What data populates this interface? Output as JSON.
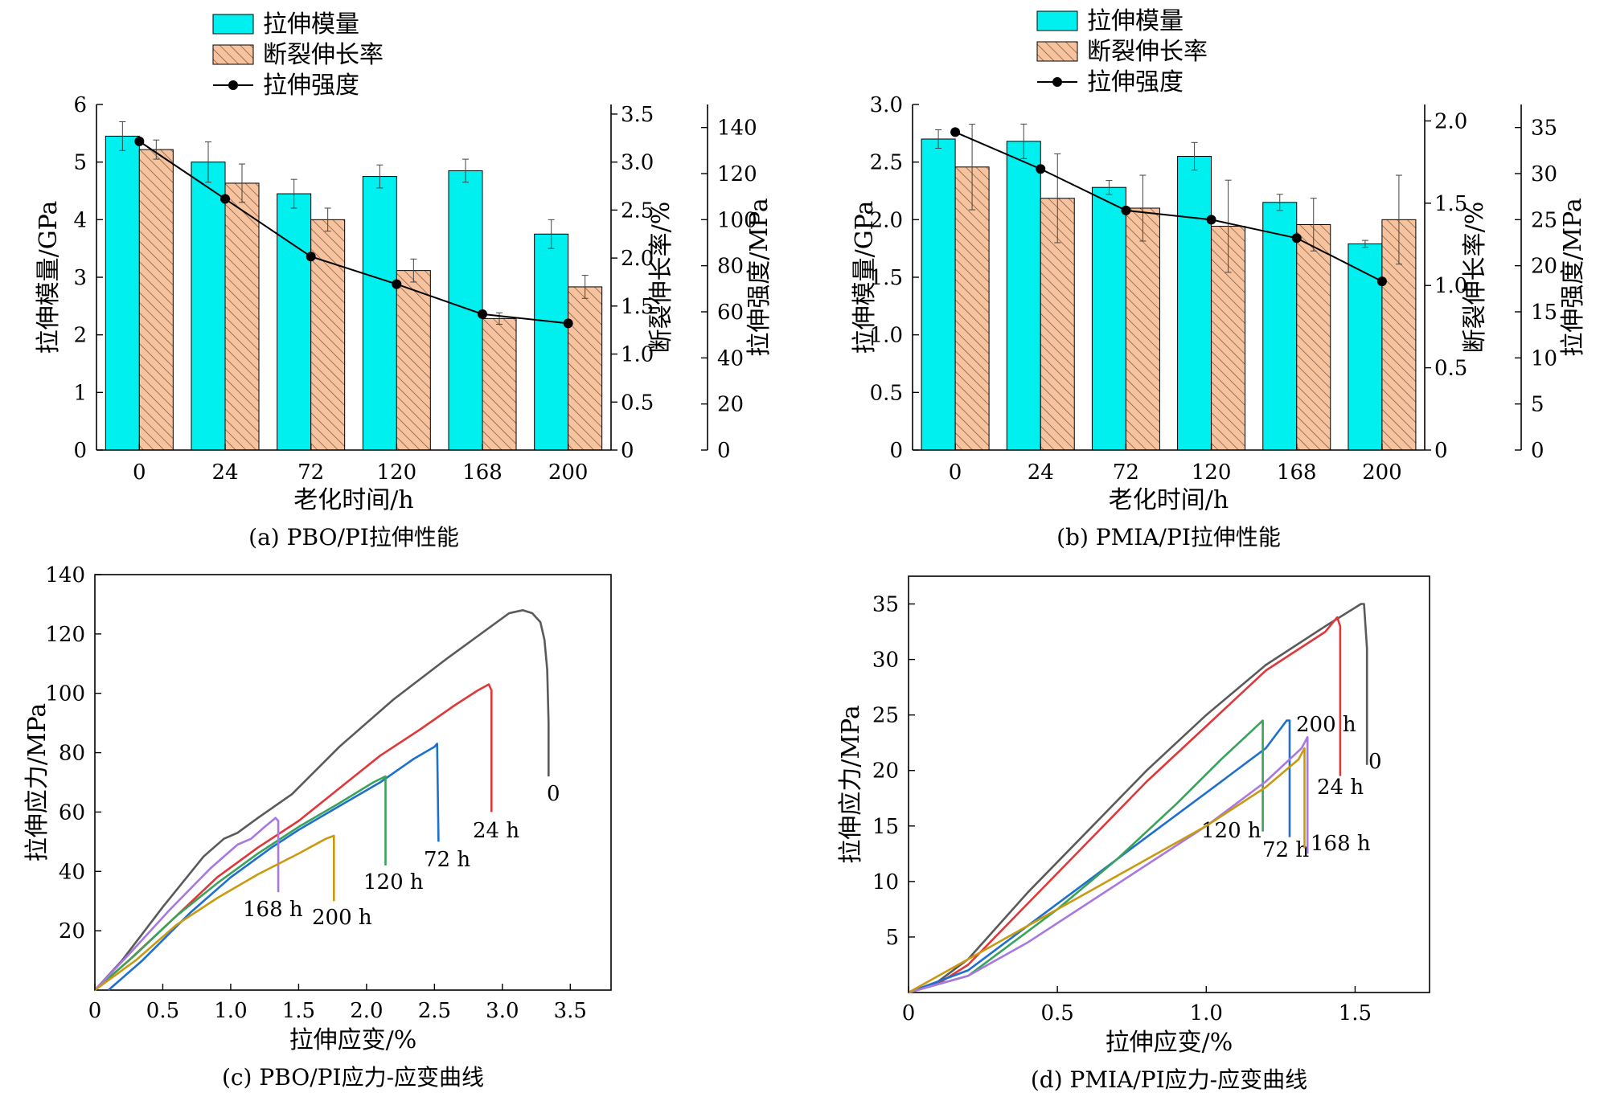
{
  "colors": {
    "modulus_fill": "#00f0f0",
    "elongation_fill": "#f6c39e",
    "hatch": "#6b4a33",
    "strength_line": "#000000",
    "curve_0": "#5a5a5a",
    "curve_24": "#e0383a",
    "curve_72": "#1f6fd0",
    "curve_120": "#3aa35a",
    "curve_168": "#a878e0",
    "curve_200": "#c99a10"
  },
  "chart_data": [
    {
      "type": "bar",
      "caption": "(a) PBO/PI拉伸性能",
      "categories": [
        "0",
        "24",
        "72",
        "120",
        "168",
        "200"
      ],
      "xlabel": "老化时间/h",
      "legend": [
        "拉伸模量",
        "断裂伸长率",
        "拉伸强度"
      ],
      "axes": [
        {
          "label": "拉伸模量/GPa",
          "ylim": [
            0,
            6
          ],
          "ticks": [
            "0",
            "1",
            "2",
            "3",
            "4",
            "5",
            "6"
          ]
        },
        {
          "label": "断裂伸长率/%",
          "ylim": [
            0,
            3.6
          ],
          "ticks": [
            "0",
            "0.5",
            "1.0",
            "1.5",
            "2.0",
            "2.5",
            "3.0",
            "3.5"
          ]
        },
        {
          "label": "拉伸强度/MPa",
          "ylim": [
            0,
            150
          ],
          "ticks": [
            "0",
            "20",
            "40",
            "60",
            "80",
            "100",
            "120",
            "140"
          ]
        }
      ],
      "series": [
        {
          "name": "拉伸模量",
          "axis": 0,
          "values": [
            5.45,
            5.0,
            4.45,
            4.75,
            4.85,
            3.75
          ],
          "errors": [
            0.25,
            0.35,
            0.25,
            0.2,
            0.2,
            0.25
          ]
        },
        {
          "name": "断裂伸长率",
          "axis": 1,
          "values": [
            3.13,
            2.78,
            2.4,
            1.87,
            1.37,
            1.7
          ],
          "errors": [
            0.1,
            0.2,
            0.12,
            0.12,
            0.06,
            0.12
          ]
        },
        {
          "name": "拉伸强度",
          "axis": 2,
          "values": [
            134,
            109,
            84,
            72,
            59,
            55
          ]
        }
      ]
    },
    {
      "type": "bar",
      "caption": "(b) PMIA/PI拉伸性能",
      "categories": [
        "0",
        "24",
        "72",
        "120",
        "168",
        "200"
      ],
      "xlabel": "老化时间/h",
      "legend": [
        "拉伸模量",
        "断裂伸长率",
        "拉伸强度"
      ],
      "axes": [
        {
          "label": "拉伸模量/GPa",
          "ylim": [
            0,
            3.0
          ],
          "ticks": [
            "0",
            "0.5",
            "1.0",
            "1.5",
            "2.0",
            "2.5",
            "3.0"
          ]
        },
        {
          "label": "断裂伸长率/%",
          "ylim": [
            0,
            2.1
          ],
          "ticks": [
            "0",
            "0.5",
            "1.0",
            "1.5",
            "2.0"
          ]
        },
        {
          "label": "拉伸强度/MPa",
          "ylim": [
            0,
            37.5
          ],
          "ticks": [
            "0",
            "5",
            "10",
            "15",
            "20",
            "25",
            "30",
            "35"
          ]
        }
      ],
      "series": [
        {
          "name": "拉伸模量",
          "axis": 0,
          "values": [
            2.7,
            2.68,
            2.28,
            2.55,
            2.15,
            1.79
          ],
          "errors": [
            0.08,
            0.15,
            0.06,
            0.12,
            0.07,
            0.03
          ]
        },
        {
          "name": "断裂伸长率",
          "axis": 1,
          "values": [
            1.72,
            1.53,
            1.47,
            1.36,
            1.37,
            1.4
          ],
          "errors": [
            0.26,
            0.27,
            0.2,
            0.28,
            0.16,
            0.27
          ]
        },
        {
          "name": "拉伸强度",
          "axis": 2,
          "values": [
            34.5,
            30.5,
            26.0,
            25.0,
            23.0,
            18.3
          ]
        }
      ]
    },
    {
      "type": "line",
      "caption": "(c) PBO/PI应力-应变曲线",
      "xlabel": "拉伸应变/%",
      "ylabel": "拉伸应力/MPa",
      "xlim": [
        0,
        3.8
      ],
      "ylim": [
        0,
        140
      ],
      "xticks": [
        "0",
        "0.5",
        "1.0",
        "1.5",
        "2.0",
        "2.5",
        "3.0",
        "3.5"
      ],
      "yticks": [
        "20",
        "40",
        "60",
        "80",
        "100",
        "120",
        "140"
      ],
      "series": [
        {
          "name": "0",
          "color_key": "curve_0",
          "x": [
            0,
            0.2,
            0.5,
            0.8,
            0.95,
            1.05,
            1.2,
            1.45,
            1.8,
            2.2,
            2.6,
            2.9,
            3.05,
            3.15,
            3.22,
            3.28,
            3.31,
            3.33,
            3.34,
            3.34
          ],
          "y": [
            0,
            10,
            28,
            45,
            51,
            53,
            58,
            66,
            82,
            98,
            112,
            122,
            127,
            128,
            127,
            124,
            118,
            108,
            90,
            72
          ]
        },
        {
          "name": "24 h",
          "color_key": "curve_24",
          "x": [
            0,
            0.25,
            0.6,
            0.9,
            1.2,
            1.5,
            1.8,
            2.1,
            2.4,
            2.65,
            2.82,
            2.9,
            2.92,
            2.92
          ],
          "y": [
            0,
            10,
            25,
            38,
            48,
            57,
            68,
            79,
            88,
            96,
            101,
            103,
            101,
            60
          ]
        },
        {
          "name": "72 h",
          "color_key": "curve_72",
          "x": [
            0.1,
            0.35,
            0.7,
            1.0,
            1.3,
            1.5,
            1.8,
            2.1,
            2.35,
            2.5,
            2.52,
            2.53
          ],
          "y": [
            0,
            10,
            26,
            38,
            48,
            54,
            62,
            70,
            78,
            82,
            83,
            50
          ]
        },
        {
          "name": "120 h",
          "color_key": "curve_120",
          "x": [
            0,
            0.3,
            0.6,
            0.9,
            1.2,
            1.5,
            1.8,
            2.05,
            2.14,
            2.14
          ],
          "y": [
            0,
            12,
            25,
            36,
            46,
            55,
            63,
            70,
            72,
            42
          ]
        },
        {
          "name": "168 h",
          "color_key": "curve_168",
          "x": [
            0,
            0.25,
            0.55,
            0.85,
            1.05,
            1.15,
            1.25,
            1.33,
            1.35,
            1.35
          ],
          "y": [
            0,
            12,
            27,
            41,
            49,
            51,
            55,
            58,
            57,
            33
          ]
        },
        {
          "name": "200 h",
          "color_key": "curve_200",
          "x": [
            0,
            0.3,
            0.6,
            0.9,
            1.2,
            1.5,
            1.7,
            1.76,
            1.76
          ],
          "y": [
            0,
            10,
            22,
            31,
            39,
            46,
            51,
            52,
            30
          ]
        }
      ]
    },
    {
      "type": "line",
      "caption": "(d) PMIA/PI应力-应变曲线",
      "xlabel": "拉伸应变/%",
      "ylabel": "拉伸应力/MPa",
      "xlim": [
        0,
        1.75
      ],
      "ylim": [
        0,
        37.5
      ],
      "xticks": [
        "0",
        "0.5",
        "1.0",
        "1.5"
      ],
      "yticks": [
        "5",
        "10",
        "15",
        "20",
        "25",
        "30",
        "35"
      ],
      "series": [
        {
          "name": "0",
          "color_key": "curve_0",
          "x": [
            0,
            0.1,
            0.2,
            0.4,
            0.6,
            0.8,
            1.0,
            1.2,
            1.4,
            1.52,
            1.53,
            1.54,
            1.54
          ],
          "y": [
            0,
            1,
            3,
            9,
            14.5,
            20,
            25,
            29.5,
            33,
            35,
            35,
            31,
            20.5
          ]
        },
        {
          "name": "24 h",
          "color_key": "curve_24",
          "x": [
            0,
            0.1,
            0.2,
            0.4,
            0.6,
            0.8,
            1.0,
            1.2,
            1.4,
            1.44,
            1.45,
            1.45
          ],
          "y": [
            0,
            0.8,
            2.5,
            8,
            13.5,
            19,
            24,
            29,
            32.5,
            33.8,
            33,
            19.5
          ]
        },
        {
          "name": "72 h",
          "color_key": "curve_72",
          "x": [
            0,
            0.2,
            0.4,
            0.6,
            0.8,
            1.0,
            1.2,
            1.27,
            1.28,
            1.28
          ],
          "y": [
            0,
            2,
            6,
            10,
            14,
            18,
            22,
            24.5,
            24.5,
            14
          ]
        },
        {
          "name": "120 h",
          "color_key": "curve_120",
          "x": [
            0,
            0.2,
            0.3,
            0.5,
            0.7,
            0.9,
            1.05,
            1.15,
            1.19,
            1.19
          ],
          "y": [
            0,
            1.5,
            3.5,
            7.5,
            12,
            17,
            21,
            23.5,
            24.5,
            14.5
          ]
        },
        {
          "name": "168 h",
          "color_key": "curve_168",
          "x": [
            0,
            0.2,
            0.4,
            0.6,
            0.8,
            1.0,
            1.2,
            1.32,
            1.34,
            1.34
          ],
          "y": [
            0,
            1.5,
            4.5,
            8,
            11.5,
            15,
            19,
            22,
            23,
            12.5
          ]
        },
        {
          "name": "200 h",
          "color_key": "curve_200",
          "x": [
            0,
            0.2,
            0.4,
            0.6,
            0.8,
            1.0,
            1.2,
            1.31,
            1.33,
            1.33
          ],
          "y": [
            0,
            3,
            6,
            9,
            12,
            15,
            18.5,
            21,
            22,
            13
          ]
        }
      ]
    }
  ]
}
